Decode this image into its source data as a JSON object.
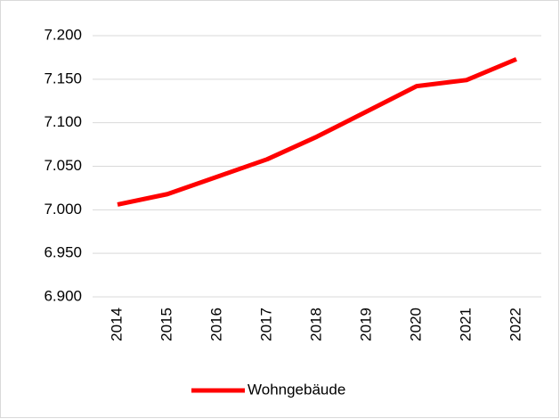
{
  "chart_data": {
    "type": "line",
    "categories": [
      "2014",
      "2015",
      "2016",
      "2017",
      "2018",
      "2019",
      "2020",
      "2021",
      "2022"
    ],
    "series": [
      {
        "name": "Wohngebäude",
        "color": "#ff0000",
        "values": [
          7006,
          7018,
          7038,
          7058,
          7084,
          7113,
          7142,
          7149,
          7173
        ]
      }
    ],
    "ylim": [
      6900,
      7200
    ],
    "yticks": [
      {
        "value": 6900,
        "label": "6.900"
      },
      {
        "value": 6950,
        "label": "6.950"
      },
      {
        "value": 7000,
        "label": "7.000"
      },
      {
        "value": 7050,
        "label": "7.050"
      },
      {
        "value": 7100,
        "label": "7.100"
      },
      {
        "value": 7150,
        "label": "7.150"
      },
      {
        "value": 7200,
        "label": "7.200"
      }
    ],
    "grid": true,
    "legend": "bottom"
  }
}
